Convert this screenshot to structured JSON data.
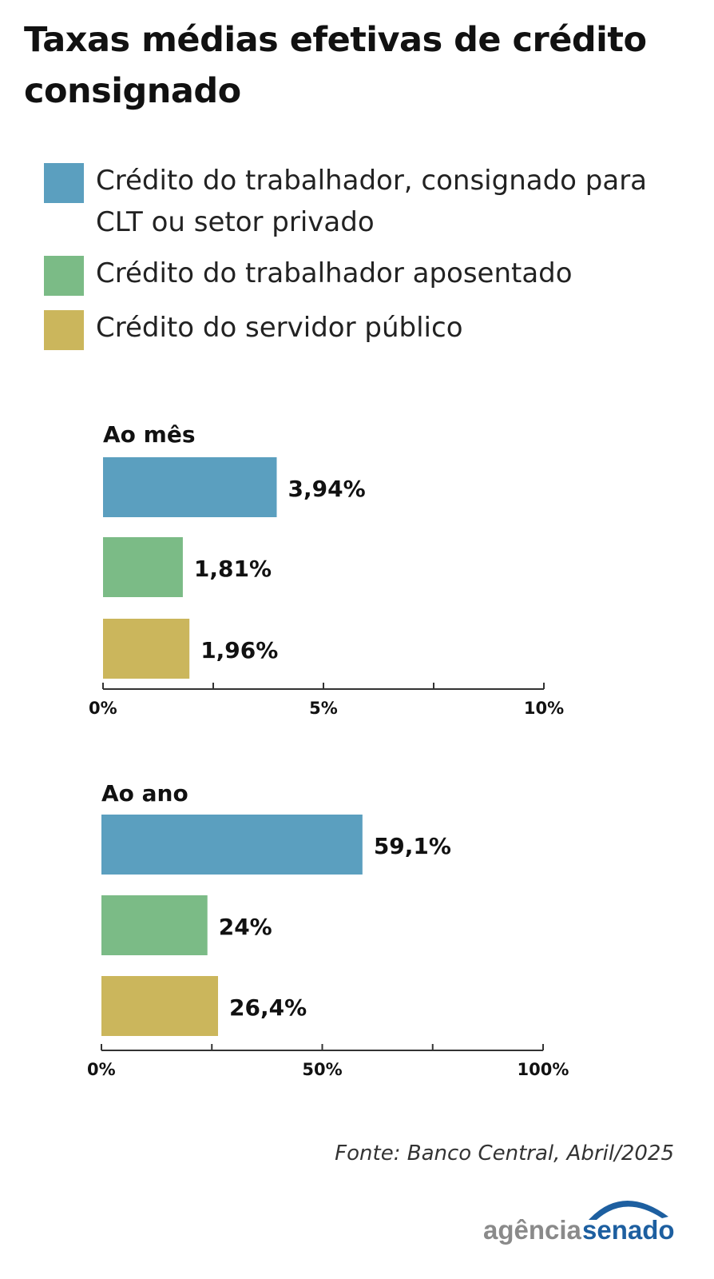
{
  "title": "Taxas médias efetivas de crédito consignado",
  "legend": [
    {
      "label": "Crédito do trabalhador, consignado para CLT ou setor privado",
      "color": "#5b9fbf"
    },
    {
      "label": "Crédito do trabalhador aposentado",
      "color": "#7bbb86"
    },
    {
      "label": "Crédito do servidor público",
      "color": "#cbb65c"
    }
  ],
  "chart_data": [
    {
      "type": "bar",
      "orientation": "horizontal",
      "title": "Ao mês",
      "categories": [
        "Crédito do trabalhador, consignado para CLT ou setor privado",
        "Crédito do trabalhador aposentado",
        "Crédito do servidor público"
      ],
      "values": [
        3.94,
        1.81,
        1.96
      ],
      "data_labels": [
        "3,94%",
        "1,81%",
        "1,96%"
      ],
      "xlim": [
        0,
        10
      ],
      "ticks": [
        0,
        2.5,
        5,
        7.5,
        10
      ],
      "tick_labels": [
        "0%",
        "",
        "5%",
        "",
        "10%"
      ],
      "grid": false
    },
    {
      "type": "bar",
      "orientation": "horizontal",
      "title": "Ao ano",
      "categories": [
        "Crédito do trabalhador, consignado para CLT ou setor privado",
        "Crédito do trabalhador aposentado",
        "Crédito do servidor público"
      ],
      "values": [
        59.1,
        24,
        26.4
      ],
      "data_labels": [
        "59,1%",
        "24%",
        "26,4%"
      ],
      "xlim": [
        0,
        100
      ],
      "ticks": [
        0,
        25,
        50,
        75,
        100
      ],
      "tick_labels": [
        "0%",
        "",
        "50%",
        "",
        "100%"
      ],
      "grid": false
    }
  ],
  "source": "Fonte:  Banco Central, Abril/2025",
  "logo": {
    "text_left": "agência",
    "text_right": "senado",
    "color_left": "#8a8a8a",
    "color_right": "#1d5fa0"
  }
}
